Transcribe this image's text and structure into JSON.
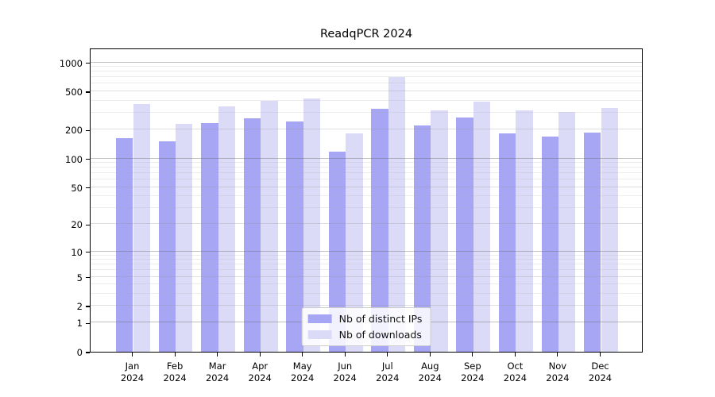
{
  "chart_data": {
    "type": "bar",
    "title": "ReadqPCR 2024",
    "categories": [
      "Jan",
      "Feb",
      "Mar",
      "Apr",
      "May",
      "Jun",
      "Jul",
      "Aug",
      "Sep",
      "Oct",
      "Nov",
      "Dec"
    ],
    "year_label": "2024",
    "series": [
      {
        "name": "Nb of distinct IPs",
        "color": "#a6a6f5",
        "values": [
          163,
          152,
          235,
          261,
          245,
          117,
          330,
          223,
          265,
          182,
          170,
          186
        ]
      },
      {
        "name": "Nb of downloads",
        "color": "#dbdbf8",
        "values": [
          368,
          230,
          350,
          395,
          420,
          182,
          700,
          315,
          388,
          320,
          306,
          333
        ]
      }
    ],
    "yticks": [
      0,
      1,
      2,
      5,
      10,
      20,
      50,
      100,
      200,
      500,
      1000
    ],
    "yscale": "log1p",
    "ylim": [
      0,
      1420
    ],
    "xlabel": "",
    "ylabel": "",
    "grid": true,
    "legend_position": "lower center"
  }
}
